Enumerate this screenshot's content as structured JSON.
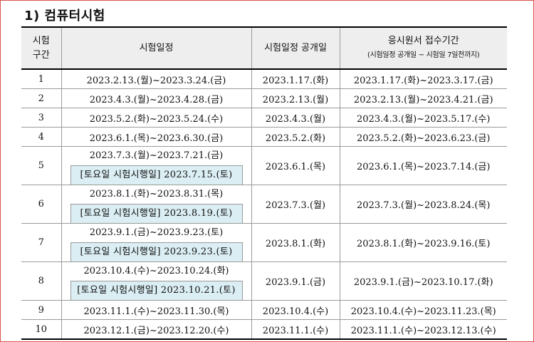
{
  "section_title": "1) 컴퓨터시험",
  "headers": {
    "round_line1": "시험",
    "round_line2": "구간",
    "schedule": "시험일정",
    "release": "시험일정 공개일",
    "application": "응시원서 접수기간",
    "application_note": "(시험일정 공개일 ~ 시험일 7일전까지)"
  },
  "rows": [
    {
      "no": "1",
      "schedule": "2023.2.13.(월)~2023.3.24.(금)",
      "saturday": "",
      "release": "2023.1.17.(화)",
      "application": "2023.1.17.(화)~2023.3.17.(금)"
    },
    {
      "no": "2",
      "schedule": "2023.4.3.(월)~2023.4.28.(금)",
      "saturday": "",
      "release": "2023.2.13.(월)",
      "application": "2023.2.13.(월)~2023.4.21.(금)"
    },
    {
      "no": "3",
      "schedule": "2023.5.2.(화)~2023.5.24.(수)",
      "saturday": "",
      "release": "2023.4.3.(월)",
      "application": "2023.4.3.(월)~2023.5.17.(수)"
    },
    {
      "no": "4",
      "schedule": "2023.6.1.(목)~2023.6.30.(금)",
      "saturday": "",
      "release": "2023.5.2.(화)",
      "application": "2023.5.2.(화)~2023.6.23.(금)"
    },
    {
      "no": "5",
      "schedule": "2023.7.3.(월)~2023.7.21.(금)",
      "saturday": "[토요일 시험시행일] 2023.7.15.(토)",
      "release": "2023.6.1.(목)",
      "application": "2023.6.1.(목)~2023.7.14.(금)"
    },
    {
      "no": "6",
      "schedule": "2023.8.1.(화)~2023.8.31.(목)",
      "saturday": "[토요일 시험시행일] 2023.8.19.(토)",
      "release": "2023.7.3.(월)",
      "application": "2023.7.3.(월)~2023.8.24.(목)"
    },
    {
      "no": "7",
      "schedule": "2023.9.1.(금)~2023.9.23.(토)",
      "saturday": "[토요일 시험시행일] 2023.9.23.(토)",
      "release": "2023.8.1.(화)",
      "application": "2023.8.1.(화)~2023.9.16.(토)"
    },
    {
      "no": "8",
      "schedule": "2023.10.4.(수)~2023.10.24.(화)",
      "saturday": "[토요일 시험시행일] 2023.10.21.(토)",
      "release": "2023.9.1.(금)",
      "application": "2023.9.1.(금)~2023.10.17.(화)"
    },
    {
      "no": "9",
      "schedule": "2023.11.1.(수)~2023.11.30.(목)",
      "saturday": "",
      "release": "2023.10.4.(수)",
      "application": "2023.10.4.(수)~2023.11.23.(목)"
    },
    {
      "no": "10",
      "schedule": "2023.12.1.(금)~2023.12.20.(수)",
      "saturday": "",
      "release": "2023.11.1.(수)",
      "application": "2023.11.1.(수)~2023.12.13.(수)"
    }
  ]
}
